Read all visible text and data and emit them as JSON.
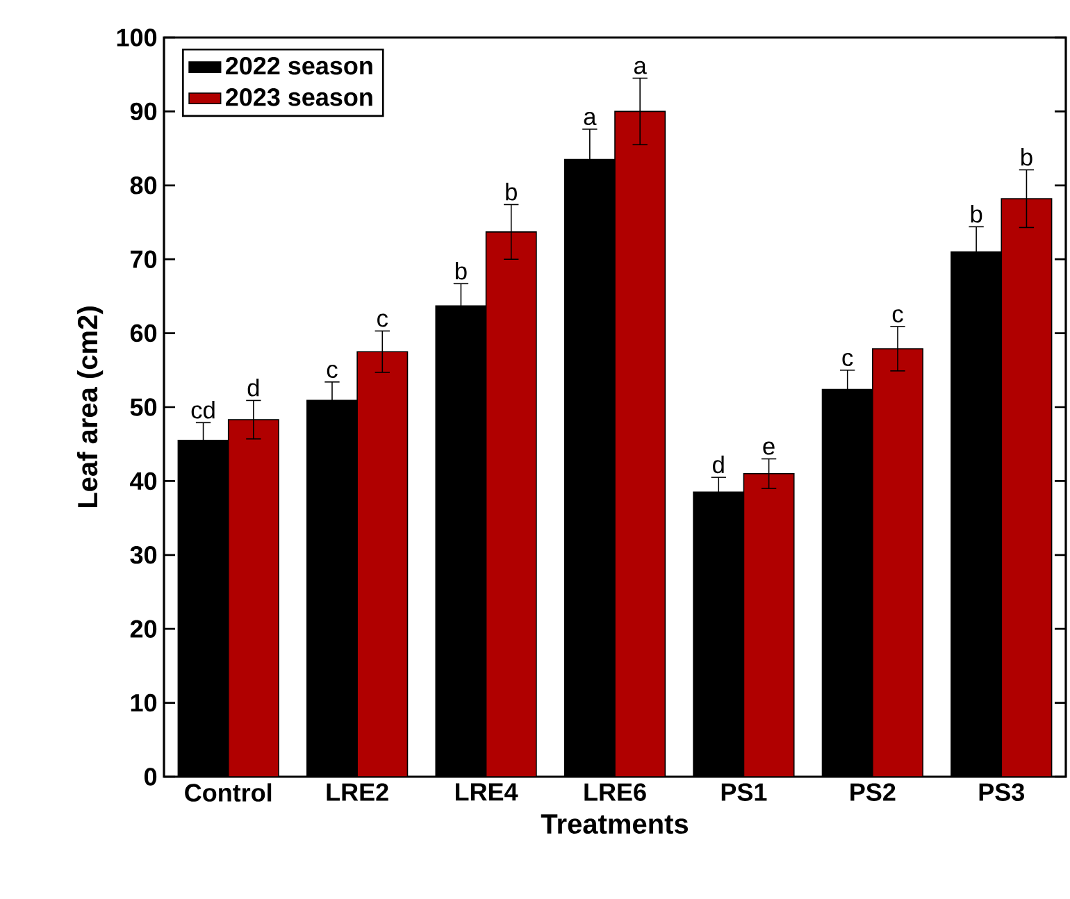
{
  "chart_data": {
    "type": "bar",
    "xlabel": "Treatments",
    "ylabel": "Leaf area (cm2)",
    "categories": [
      "Control",
      "LRE2",
      "LRE4",
      "LRE6",
      "PS1",
      "PS2",
      "PS3"
    ],
    "series": [
      {
        "name": "2022 season",
        "color": "#000000",
        "values": [
          45.5,
          50.9,
          63.7,
          83.5,
          38.5,
          52.4,
          71.0
        ],
        "errors": [
          2.4,
          2.5,
          3.0,
          4.1,
          2.0,
          2.6,
          3.4
        ],
        "value_labels": [
          "cd",
          "c",
          "b",
          "a",
          "d",
          "c",
          "b"
        ]
      },
      {
        "name": "2023 season",
        "color": "#b00000",
        "values": [
          48.3,
          57.5,
          73.7,
          90.0,
          41.0,
          57.9,
          78.2
        ],
        "errors": [
          2.6,
          2.8,
          3.7,
          4.5,
          2.0,
          3.0,
          3.9
        ],
        "value_labels": [
          "d",
          "c",
          "b",
          "a",
          "e",
          "c",
          "b"
        ]
      }
    ],
    "ylim": [
      0,
      100
    ],
    "yticks": [
      0,
      10,
      20,
      30,
      40,
      50,
      60,
      70,
      80,
      90,
      100
    ],
    "legend": "top left"
  }
}
